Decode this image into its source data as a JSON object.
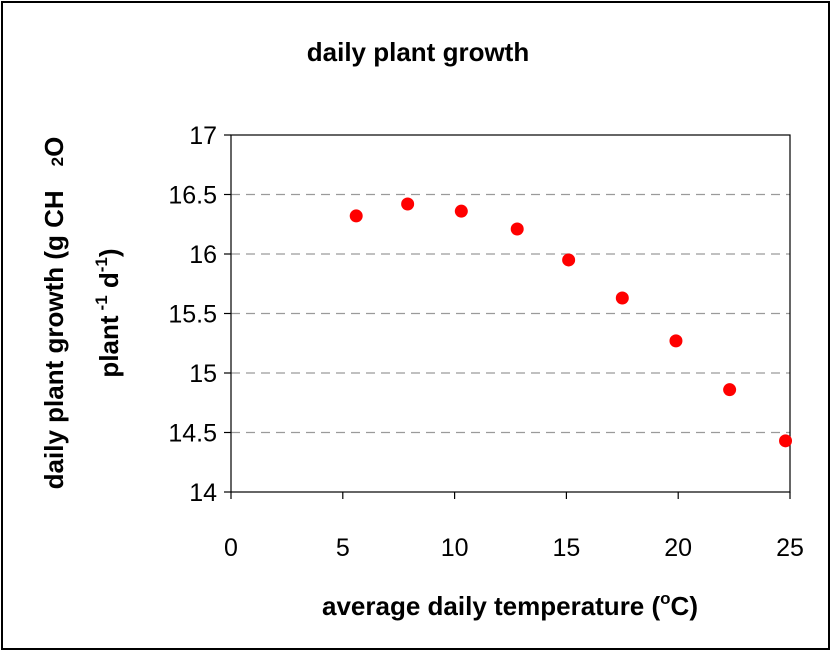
{
  "chart_data": {
    "type": "scatter",
    "title": "daily plant growth",
    "xlabel": {
      "main": "average daily temperature (",
      "sup": "o",
      "end": "C)"
    },
    "ylabel": {
      "line1_main": "daily plant growth (g CH",
      "line1_sub": "2",
      "line1_end": "O",
      "line2_a": "plant",
      "line2_sup1": "-1",
      "line2_b": " d",
      "line2_sup2": "-1",
      "line2_c": ")"
    },
    "xlim": [
      0,
      25
    ],
    "ylim": [
      14,
      17
    ],
    "xticks": [
      "0",
      "5",
      "10",
      "15",
      "20",
      "25"
    ],
    "yticks": [
      "14",
      "14.5",
      "15",
      "15.5",
      "16",
      "16.5",
      "17"
    ],
    "grid": "horizontal dashed",
    "marker_color": "#ff0000",
    "points": [
      {
        "x": 5.6,
        "y": 16.32
      },
      {
        "x": 7.9,
        "y": 16.42
      },
      {
        "x": 10.3,
        "y": 16.36
      },
      {
        "x": 12.8,
        "y": 16.21
      },
      {
        "x": 15.1,
        "y": 15.95
      },
      {
        "x": 17.5,
        "y": 15.63
      },
      {
        "x": 19.9,
        "y": 15.27
      },
      {
        "x": 22.3,
        "y": 14.86
      },
      {
        "x": 24.8,
        "y": 14.43
      }
    ]
  }
}
